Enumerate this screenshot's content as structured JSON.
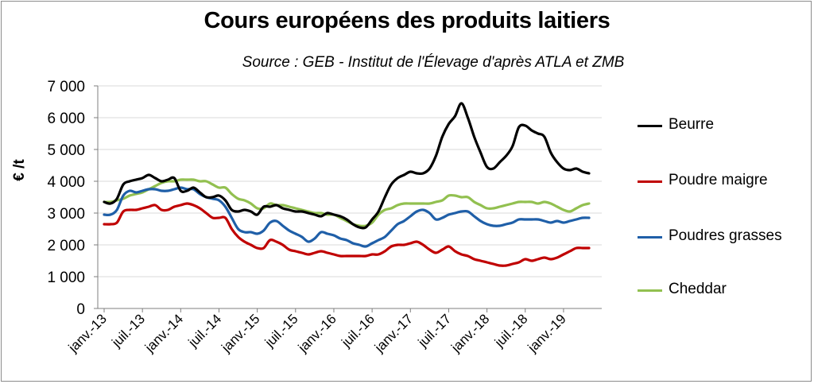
{
  "chart_data": {
    "type": "line",
    "title": "Cours européens des produits laitiers",
    "subtitle": "Source : GEB - Institut de l'Élevage d'après ATLA et ZMB",
    "xlabel": "",
    "ylabel": "€ /t",
    "ylim": [
      0,
      7000
    ],
    "yticks": [
      "0",
      "1 000",
      "2 000",
      "3 000",
      "4 000",
      "5 000",
      "6 000",
      "7 000"
    ],
    "ytick_values": [
      0,
      1000,
      2000,
      3000,
      4000,
      5000,
      6000,
      7000
    ],
    "xtick_labels": [
      "janv.-13",
      "juil.-13",
      "janv.-14",
      "juil.-14",
      "janv.-15",
      "juil.-15",
      "janv.-16",
      "juil.-16",
      "janv.-17",
      "juil.-17",
      "janv.-18",
      "juil.-18",
      "janv.-19"
    ],
    "x": [
      "2013-01",
      "2013-02",
      "2013-03",
      "2013-04",
      "2013-05",
      "2013-06",
      "2013-07",
      "2013-08",
      "2013-09",
      "2013-10",
      "2013-11",
      "2013-12",
      "2014-01",
      "2014-02",
      "2014-03",
      "2014-04",
      "2014-05",
      "2014-06",
      "2014-07",
      "2014-08",
      "2014-09",
      "2014-10",
      "2014-11",
      "2014-12",
      "2015-01",
      "2015-02",
      "2015-03",
      "2015-04",
      "2015-05",
      "2015-06",
      "2015-07",
      "2015-08",
      "2015-09",
      "2015-10",
      "2015-11",
      "2015-12",
      "2016-01",
      "2016-02",
      "2016-03",
      "2016-04",
      "2016-05",
      "2016-06",
      "2016-07",
      "2016-08",
      "2016-09",
      "2016-10",
      "2016-11",
      "2016-12",
      "2017-01",
      "2017-02",
      "2017-03",
      "2017-04",
      "2017-05",
      "2017-06",
      "2017-07",
      "2017-08",
      "2017-09",
      "2017-10",
      "2017-11",
      "2017-12",
      "2018-01",
      "2018-02",
      "2018-03",
      "2018-04",
      "2018-05",
      "2018-06",
      "2018-07",
      "2018-08",
      "2018-09",
      "2018-10",
      "2018-11",
      "2018-12",
      "2019-01",
      "2019-02",
      "2019-03",
      "2019-04",
      "2019-05"
    ],
    "grid": "horizontal",
    "legend": "right",
    "series": [
      {
        "name": "Beurre",
        "color": "#000000",
        "values": [
          3350,
          3300,
          3450,
          3900,
          4000,
          4050,
          4100,
          4200,
          4100,
          4000,
          4050,
          4100,
          3700,
          3700,
          3800,
          3650,
          3500,
          3500,
          3550,
          3400,
          3100,
          3050,
          3100,
          3050,
          2950,
          3200,
          3200,
          3250,
          3150,
          3100,
          3050,
          3050,
          3000,
          2950,
          2900,
          3000,
          2950,
          2900,
          2800,
          2650,
          2550,
          2550,
          2800,
          3050,
          3500,
          3900,
          4100,
          4200,
          4300,
          4250,
          4250,
          4400,
          4800,
          5400,
          5800,
          6050,
          6450,
          6000,
          5400,
          4900,
          4450,
          4400,
          4600,
          4800,
          5100,
          5700,
          5750,
          5600,
          5500,
          5400,
          4900,
          4600,
          4400,
          4350,
          4400,
          4300,
          4250
        ]
      },
      {
        "name": "Poudre maigre",
        "color": "#c00000",
        "values": [
          2650,
          2650,
          2700,
          3050,
          3100,
          3100,
          3150,
          3200,
          3250,
          3100,
          3100,
          3200,
          3250,
          3300,
          3250,
          3150,
          3000,
          2850,
          2850,
          2850,
          2500,
          2250,
          2100,
          2000,
          1900,
          1900,
          2150,
          2100,
          2000,
          1850,
          1800,
          1750,
          1700,
          1750,
          1800,
          1750,
          1700,
          1650,
          1650,
          1650,
          1650,
          1650,
          1700,
          1700,
          1800,
          1950,
          2000,
          2000,
          2050,
          2100,
          2000,
          1850,
          1750,
          1850,
          1950,
          1800,
          1700,
          1650,
          1550,
          1500,
          1450,
          1400,
          1350,
          1350,
          1400,
          1450,
          1550,
          1500,
          1550,
          1600,
          1550,
          1600,
          1700,
          1800,
          1900,
          1900,
          1900
        ]
      },
      {
        "name": "Poudres grasses",
        "color": "#1f5fa8",
        "values": [
          2950,
          2950,
          3100,
          3550,
          3700,
          3650,
          3700,
          3750,
          3750,
          3700,
          3700,
          3750,
          3800,
          3750,
          3750,
          3600,
          3500,
          3450,
          3400,
          3200,
          2850,
          2500,
          2400,
          2400,
          2350,
          2450,
          2700,
          2750,
          2600,
          2450,
          2350,
          2250,
          2100,
          2200,
          2400,
          2350,
          2300,
          2200,
          2150,
          2050,
          2000,
          1950,
          2050,
          2150,
          2250,
          2450,
          2650,
          2750,
          2900,
          3050,
          3100,
          3000,
          2800,
          2850,
          2950,
          3000,
          3050,
          3050,
          2900,
          2750,
          2650,
          2600,
          2600,
          2650,
          2700,
          2800,
          2800,
          2800,
          2800,
          2750,
          2700,
          2750,
          2700,
          2750,
          2800,
          2850,
          2850
        ]
      },
      {
        "name": "Cheddar",
        "color": "#92c050",
        "values": [
          3350,
          3350,
          3400,
          3450,
          3550,
          3600,
          3650,
          3750,
          3850,
          3950,
          4000,
          4000,
          4050,
          4050,
          4050,
          4000,
          4000,
          3900,
          3800,
          3800,
          3600,
          3450,
          3400,
          3300,
          3150,
          3150,
          3300,
          3250,
          3250,
          3200,
          3150,
          3100,
          3050,
          3000,
          3000,
          2950,
          2950,
          2850,
          2750,
          2650,
          2600,
          2600,
          2700,
          2950,
          3100,
          3150,
          3250,
          3300,
          3300,
          3300,
          3300,
          3300,
          3350,
          3400,
          3550,
          3550,
          3500,
          3500,
          3350,
          3250,
          3150,
          3150,
          3200,
          3250,
          3300,
          3350,
          3350,
          3350,
          3300,
          3350,
          3300,
          3200,
          3100,
          3050,
          3150,
          3250,
          3300
        ]
      }
    ]
  }
}
